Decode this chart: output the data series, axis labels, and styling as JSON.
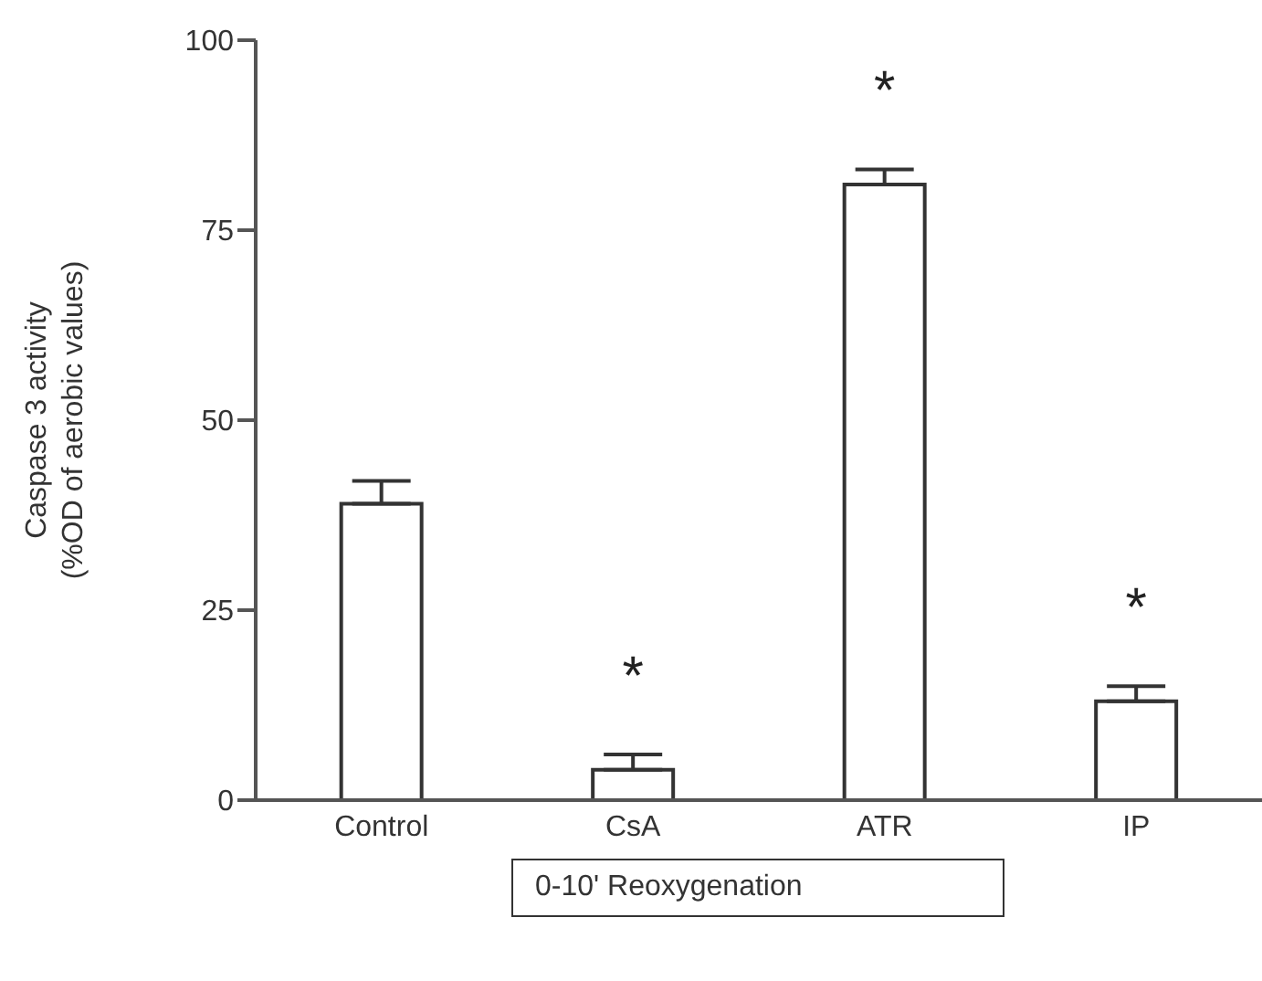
{
  "chart_data": {
    "type": "bar",
    "ylabel": "Caspase 3 activity\n(%OD of aerobic values)",
    "categories": [
      "Control",
      "CsA",
      "ATR",
      "IP"
    ],
    "values": [
      39,
      4,
      81,
      13
    ],
    "color": "#ffffff",
    "errors": [
      [
        39,
        42
      ],
      [
        4,
        6
      ],
      [
        81,
        83
      ],
      [
        13,
        15
      ]
    ],
    "ylim": [
      0,
      100
    ],
    "yticks": [
      0,
      25,
      50,
      75,
      100
    ],
    "grid": false,
    "annotations": [
      {
        "text": "*",
        "x": "CsA",
        "y": 4
      },
      {
        "text": "*",
        "x": "ATR",
        "y": 81
      },
      {
        "text": "*",
        "x": "IP",
        "y": 13
      },
      "0-10' Reoxygenation"
    ]
  }
}
